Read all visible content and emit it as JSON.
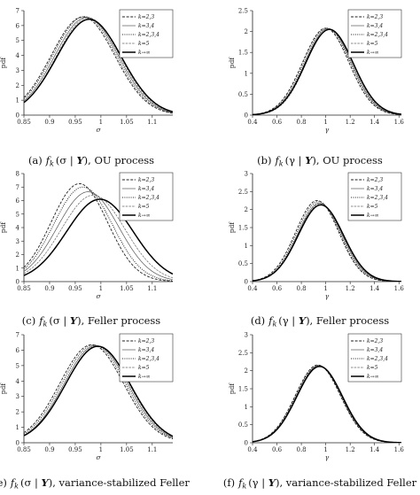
{
  "legend_entries": [
    "k=2,3",
    "k=3,4",
    "k=2,3,4",
    "k=5",
    "k→∞"
  ],
  "series_styles": [
    {
      "dash": "3,1.6",
      "width": 0.9,
      "color": "#222"
    },
    {
      "dash": "",
      "width": 0.7,
      "color": "#555"
    },
    {
      "dash": "1,1.4",
      "width": 1.0,
      "color": "#222"
    },
    {
      "dash": "2.5,1.2",
      "width": 0.7,
      "color": "#666"
    },
    {
      "dash": "",
      "width": 1.5,
      "color": "#000"
    }
  ],
  "chart_data": [
    {
      "type": "line",
      "caption": "(a) f_k (σ | Y), OU process",
      "caption_parts": {
        "label": "(a)",
        "f": "f",
        "sub": "k",
        "args": "(σ | ",
        "bold": "Y",
        "close": "), OU process"
      },
      "xlabel": "σ",
      "ylabel": "pdf",
      "xlim": [
        0.85,
        1.14
      ],
      "ylim": [
        0,
        7
      ],
      "xticks": [
        0.85,
        0.9,
        0.95,
        1,
        1.05,
        1.1
      ],
      "xticklabels": [
        "0.85",
        "0.9",
        "0.95",
        "1",
        "1.05",
        "1.1"
      ],
      "yticks": [
        0,
        1,
        2,
        3,
        4,
        5,
        6,
        7
      ],
      "yticklabels": [
        "0",
        "1",
        "2",
        "3",
        "4",
        "5",
        "6",
        "7"
      ],
      "legend": "top-right",
      "series": [
        {
          "name": "k=2,3",
          "mu": 0.965,
          "sigma": 0.062,
          "peak": 6.58
        },
        {
          "name": "k=3,4",
          "mu": 0.972,
          "sigma": 0.062,
          "peak": 6.55
        },
        {
          "name": "k=2,3,4",
          "mu": 0.968,
          "sigma": 0.062,
          "peak": 6.6
        },
        {
          "name": "k=5",
          "mu": 0.975,
          "sigma": 0.062,
          "peak": 6.52
        },
        {
          "name": "k→∞",
          "mu": 0.977,
          "sigma": 0.063,
          "peak": 6.42
        }
      ]
    },
    {
      "type": "line",
      "caption": "(b) f_k (γ | Y), OU process",
      "caption_parts": {
        "label": "(b)",
        "f": "f",
        "sub": "k",
        "args": "(γ | ",
        "bold": "Y",
        "close": "), OU process"
      },
      "xlabel": "γ",
      "ylabel": "pdf",
      "xlim": [
        0.4,
        1.62
      ],
      "ylim": [
        0,
        2.5
      ],
      "xticks": [
        0.4,
        0.6,
        0.8,
        1,
        1.2,
        1.4,
        1.6
      ],
      "xticklabels": [
        "0.4",
        "0.6",
        "0.8",
        "1",
        "1.2",
        "1.4",
        "1.6"
      ],
      "yticks": [
        0,
        0.5,
        1,
        1.5,
        2,
        2.5
      ],
      "yticklabels": [
        "0",
        "0.5",
        "1",
        "1.5",
        "2",
        "2.5"
      ],
      "legend": "top-right",
      "series": [
        {
          "name": "k=2,3",
          "mu": 1.0,
          "sigma": 0.19,
          "peak": 2.08
        },
        {
          "name": "k=3,4",
          "mu": 1.02,
          "sigma": 0.19,
          "peak": 2.07
        },
        {
          "name": "k=2,3,4",
          "mu": 1.01,
          "sigma": 0.19,
          "peak": 2.08
        },
        {
          "name": "k=5",
          "mu": 1.03,
          "sigma": 0.19,
          "peak": 2.06
        },
        {
          "name": "k→∞",
          "mu": 1.03,
          "sigma": 0.195,
          "peak": 2.05
        }
      ]
    },
    {
      "type": "line",
      "caption": "(c) f_k (σ | Y), Feller process",
      "caption_parts": {
        "label": "(c)",
        "f": "f",
        "sub": "k",
        "args": "(σ | ",
        "bold": "Y",
        "close": "), Feller process"
      },
      "xlabel": "σ",
      "ylabel": "pdf",
      "xlim": [
        0.85,
        1.14
      ],
      "ylim": [
        0,
        8
      ],
      "xticks": [
        0.85,
        0.9,
        0.95,
        1,
        1.05,
        1.1
      ],
      "xticklabels": [
        "0.85",
        "0.9",
        "0.95",
        "1",
        "1.05",
        "1.1"
      ],
      "yticks": [
        0,
        1,
        2,
        3,
        4,
        5,
        6,
        7,
        8
      ],
      "yticklabels": [
        "0",
        "1",
        "2",
        "3",
        "4",
        "5",
        "6",
        "7",
        "8"
      ],
      "legend": "top-right",
      "series": [
        {
          "name": "k=2,3",
          "mu": 0.958,
          "sigma": 0.055,
          "peak": 7.25
        },
        {
          "name": "k=3,4",
          "mu": 0.975,
          "sigma": 0.06,
          "peak": 6.65
        },
        {
          "name": "k=2,3,4",
          "mu": 0.965,
          "sigma": 0.057,
          "peak": 7.0
        },
        {
          "name": "k=5",
          "mu": 0.985,
          "sigma": 0.062,
          "peak": 6.4
        },
        {
          "name": "k→∞",
          "mu": 0.998,
          "sigma": 0.065,
          "peak": 6.1
        }
      ]
    },
    {
      "type": "line",
      "caption": "(d) f_k (γ | Y), Feller process",
      "caption_parts": {
        "label": "(d)",
        "f": "f",
        "sub": "k",
        "args": "(γ | ",
        "bold": "Y",
        "close": "), Feller process"
      },
      "xlabel": "γ",
      "ylabel": "pdf",
      "xlim": [
        0.4,
        1.62
      ],
      "ylim": [
        0,
        3
      ],
      "xticks": [
        0.4,
        0.6,
        0.8,
        1,
        1.2,
        1.4,
        1.6
      ],
      "xticklabels": [
        "0.4",
        "0.6",
        "0.8",
        "1",
        "1.2",
        "1.4",
        "1.6"
      ],
      "yticks": [
        0,
        0.5,
        1,
        1.5,
        2,
        2.5,
        3
      ],
      "yticklabels": [
        "0",
        "0.5",
        "1",
        "1.5",
        "2",
        "2.5",
        "3"
      ],
      "legend": "top-right",
      "series": [
        {
          "name": "k=2,3",
          "mu": 0.93,
          "sigma": 0.178,
          "peak": 2.25
        },
        {
          "name": "k=3,4",
          "mu": 0.95,
          "sigma": 0.18,
          "peak": 2.18
        },
        {
          "name": "k=2,3,4",
          "mu": 0.94,
          "sigma": 0.178,
          "peak": 2.22
        },
        {
          "name": "k=5",
          "mu": 0.955,
          "sigma": 0.182,
          "peak": 2.16
        },
        {
          "name": "k→∞",
          "mu": 0.96,
          "sigma": 0.185,
          "peak": 2.13
        }
      ]
    },
    {
      "type": "line",
      "caption": "(e) f_k (σ | Y), variance-stabilized Feller",
      "caption_parts": {
        "label": "(e)",
        "f": "f",
        "sub": "k",
        "args": "(σ | ",
        "bold": "Y",
        "close": "), variance-stabilized Feller"
      },
      "xlabel": "σ",
      "ylabel": "pdf",
      "xlim": [
        0.85,
        1.14
      ],
      "ylim": [
        0,
        7
      ],
      "xticks": [
        0.85,
        0.9,
        0.95,
        1,
        1.05,
        1.1
      ],
      "xticklabels": [
        "0.85",
        "0.9",
        "0.95",
        "1",
        "1.05",
        "1.1"
      ],
      "yticks": [
        0,
        1,
        2,
        3,
        4,
        5,
        6,
        7
      ],
      "yticklabels": [
        "0",
        "1",
        "2",
        "3",
        "4",
        "5",
        "6",
        "7"
      ],
      "legend": "top-right",
      "series": [
        {
          "name": "k=2,3",
          "mu": 0.982,
          "sigma": 0.062,
          "peak": 6.35
        },
        {
          "name": "k=3,4",
          "mu": 0.99,
          "sigma": 0.062,
          "peak": 6.3
        },
        {
          "name": "k=2,3,4",
          "mu": 0.986,
          "sigma": 0.062,
          "peak": 6.33
        },
        {
          "name": "k=5",
          "mu": 0.993,
          "sigma": 0.062,
          "peak": 6.28
        },
        {
          "name": "k→∞",
          "mu": 0.994,
          "sigma": 0.063,
          "peak": 6.25
        }
      ]
    },
    {
      "type": "line",
      "caption": "(f) f_k (γ | Y), variance-stabilized Feller",
      "caption_parts": {
        "label": "(f)",
        "f": "f",
        "sub": "k",
        "args": "(γ | ",
        "bold": "Y",
        "close": "), variance-stabilized Feller"
      },
      "xlabel": "γ",
      "ylabel": "pdf",
      "xlim": [
        0.4,
        1.62
      ],
      "ylim": [
        0,
        3
      ],
      "xticks": [
        0.4,
        0.6,
        0.8,
        1,
        1.2,
        1.4,
        1.6
      ],
      "xticklabels": [
        "0.4",
        "0.6",
        "0.8",
        "1",
        "1.2",
        "1.4",
        "1.6"
      ],
      "yticks": [
        0,
        0.5,
        1,
        1.5,
        2,
        2.5,
        3
      ],
      "yticklabels": [
        "0",
        "0.5",
        "1",
        "1.5",
        "2",
        "2.5",
        "3"
      ],
      "legend": "top-right",
      "series": [
        {
          "name": "k=2,3",
          "mu": 0.935,
          "sigma": 0.185,
          "peak": 2.16
        },
        {
          "name": "k=3,4",
          "mu": 0.945,
          "sigma": 0.185,
          "peak": 2.14
        },
        {
          "name": "k=2,3,4",
          "mu": 0.94,
          "sigma": 0.185,
          "peak": 2.15
        },
        {
          "name": "k=5",
          "mu": 0.95,
          "sigma": 0.186,
          "peak": 2.13
        },
        {
          "name": "k→∞",
          "mu": 0.95,
          "sigma": 0.187,
          "peak": 2.12
        }
      ]
    }
  ]
}
